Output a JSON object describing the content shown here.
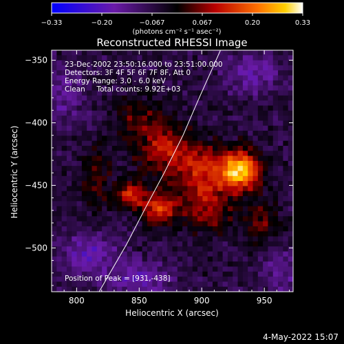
{
  "chart_data": {
    "type": "heatmap",
    "title": "Reconstructed RHESSI Image",
    "xlabel": "Heliocentric X (arcsec)",
    "ylabel": "Heliocentric Y (arcsec)",
    "xlim": [
      780,
      973
    ],
    "ylim": [
      -535,
      -342
    ],
    "xticks": [
      800,
      850,
      900,
      950
    ],
    "yticks": [
      -350,
      -400,
      -450,
      -500
    ],
    "colorbar": {
      "label": "(photons cm⁻² s⁻¹ asec⁻²)",
      "range": [
        -0.33,
        0.33
      ],
      "ticks": [
        "−0.33",
        "−0.20",
        "−0.067",
        "0.067",
        "0.20",
        "0.33"
      ]
    },
    "annotations": [
      "23-Dec-2002 23:50:16.000 to 23:51:00.000",
      "Detectors: 3F 4F 5F 6F 7F 8F, Att 0",
      "Energy Range: 3.0 - 6.0 keV",
      "Clean     Total counts: 9.92E+03"
    ],
    "peak_label": "Position of Peak = [931,-438]",
    "peak": [
      931,
      -438
    ],
    "sources": [
      {
        "x": 931,
        "y": -438,
        "amp": 0.33,
        "sx": 11,
        "sy": 11
      },
      {
        "x": 902,
        "y": -440,
        "amp": 0.17,
        "sx": 14,
        "sy": 14
      },
      {
        "x": 870,
        "y": -422,
        "amp": 0.16,
        "sx": 17,
        "sy": 15
      },
      {
        "x": 866,
        "y": -468,
        "amp": 0.21,
        "sx": 10,
        "sy": 9
      },
      {
        "x": 843,
        "y": -458,
        "amp": 0.2,
        "sx": 7,
        "sy": 7
      },
      {
        "x": 905,
        "y": -470,
        "amp": 0.12,
        "sx": 15,
        "sy": 13
      },
      {
        "x": 815,
        "y": -445,
        "amp": 0.09,
        "sx": 10,
        "sy": 18
      },
      {
        "x": 850,
        "y": -395,
        "amp": 0.09,
        "sx": 15,
        "sy": 10
      },
      {
        "x": 948,
        "y": -478,
        "amp": 0.1,
        "sx": 10,
        "sy": 12
      },
      {
        "x": 810,
        "y": -505,
        "amp": -0.12,
        "sx": 15,
        "sy": 12
      },
      {
        "x": 850,
        "y": -525,
        "amp": -0.12,
        "sx": 18,
        "sy": 10
      },
      {
        "x": 940,
        "y": -360,
        "amp": -0.1,
        "sx": 16,
        "sy": 12
      },
      {
        "x": 790,
        "y": -380,
        "amp": -0.08,
        "sx": 12,
        "sy": 16
      },
      {
        "x": 965,
        "y": -520,
        "amp": -0.08,
        "sx": 12,
        "sy": 12
      }
    ],
    "limb_curve": [
      [
        818,
        -535
      ],
      [
        840,
        -497
      ],
      [
        855,
        -468
      ],
      [
        870,
        -440
      ],
      [
        885,
        -410
      ],
      [
        898,
        -380
      ],
      [
        915,
        -342
      ]
    ]
  },
  "footer_date": "4-May-2022 15:07"
}
